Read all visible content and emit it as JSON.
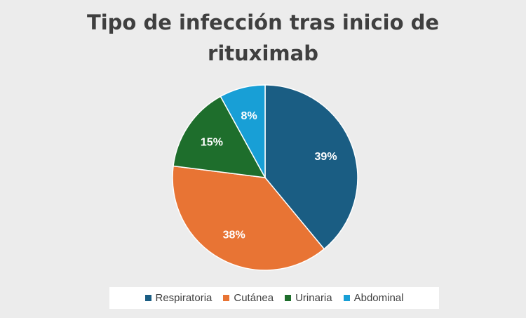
{
  "chart_data": {
    "type": "pie",
    "title_lines": [
      "Tipo de infección tras inicio de",
      "rituximab"
    ],
    "slices": [
      {
        "name": "Respiratoria",
        "value": 39,
        "label": "39%",
        "color": "#1a5d83"
      },
      {
        "name": "Cutánea",
        "value": 38,
        "label": "38%",
        "color": "#e87434"
      },
      {
        "name": "Urinaria",
        "value": 15,
        "label": "15%",
        "color": "#1e6e2c"
      },
      {
        "name": "Abdominal",
        "value": 8,
        "label": "8%",
        "color": "#189fd6"
      }
    ],
    "legend_position": "bottom"
  }
}
